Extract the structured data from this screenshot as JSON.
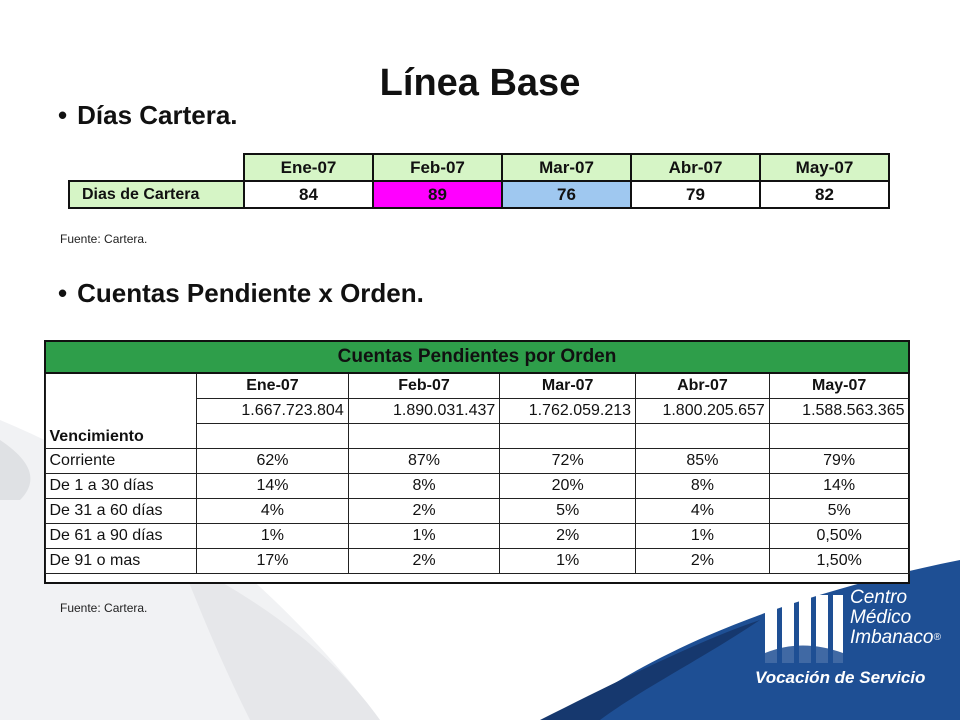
{
  "slide": {
    "title": "Línea Base",
    "bullet1": "Días Cartera.",
    "bullet2": "Cuentas Pendiente x Orden.",
    "source1": "Fuente: Cartera.",
    "source2": "Fuente: Cartera.",
    "bullet_char": "•"
  },
  "dias_cartera": {
    "months": [
      "Ene-07",
      "Feb-07",
      "Mar-07",
      "Abr-07",
      "May-07"
    ],
    "row_label": "Dias de Cartera",
    "values": [
      "84",
      "89",
      "76",
      "79",
      "82"
    ],
    "colors": {
      "header_bg": "#d6f5c6",
      "highlight_pink": "#ff00ff",
      "highlight_blue": "#9fc8f0"
    }
  },
  "cuentas": {
    "title": "Cuentas Pendientes por Orden",
    "months": [
      "Ene-07",
      "Feb-07",
      "Mar-07",
      "Abr-07",
      "May-07"
    ],
    "totals": [
      "1.667.723.804",
      "1.890.031.437",
      "1.762.059.213",
      "1.800.205.657",
      "1.588.563.365"
    ],
    "row_header": "Vencimiento",
    "rows": [
      {
        "label": "Corriente",
        "values": [
          "62%",
          "87%",
          "72%",
          "85%",
          "79%"
        ]
      },
      {
        "label": "De 1 a 30 días",
        "values": [
          "14%",
          "8%",
          "20%",
          "8%",
          "14%"
        ]
      },
      {
        "label": "De 31 a 60 días",
        "values": [
          "4%",
          "2%",
          "5%",
          "4%",
          "5%"
        ]
      },
      {
        "label": "De 61 a 90 días",
        "values": [
          "1%",
          "1%",
          "2%",
          "1%",
          "0,50%"
        ]
      },
      {
        "label": "De 91 o mas",
        "values": [
          "17%",
          "2%",
          "1%",
          "2%",
          "1,50%"
        ]
      }
    ],
    "colors": {
      "banner_bg": "#2e9e4a"
    }
  },
  "logo": {
    "line1": "Centro",
    "line2": "Médico",
    "line3": "Imbanaco",
    "reg": "®",
    "tagline": "Vocación de Servicio",
    "colors": {
      "brand_blue": "#1e4f94",
      "brand_dark": "#16386e"
    }
  }
}
